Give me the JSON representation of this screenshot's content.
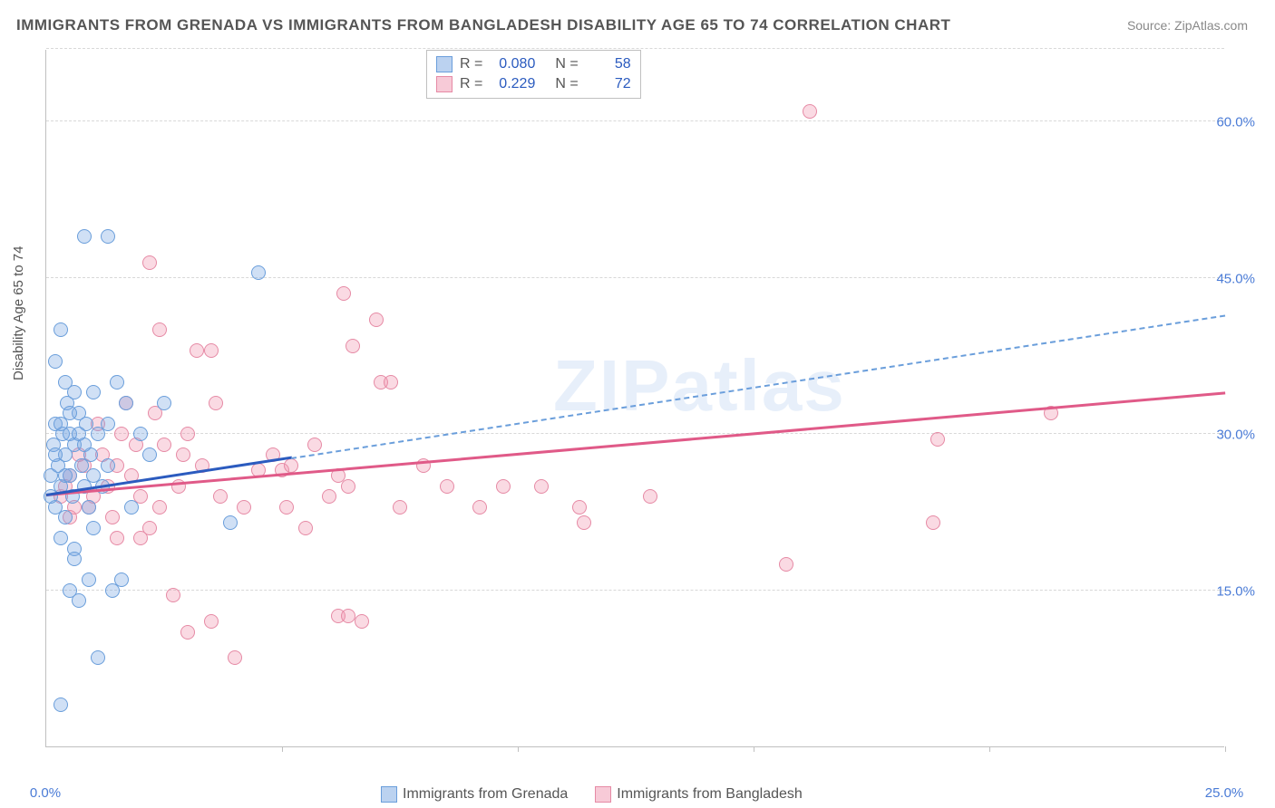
{
  "title": "IMMIGRANTS FROM GRENADA VS IMMIGRANTS FROM BANGLADESH DISABILITY AGE 65 TO 74 CORRELATION CHART",
  "source_prefix": "Source: ",
  "source_name": "ZipAtlas.com",
  "y_axis_label": "Disability Age 65 to 74",
  "watermark": "ZIPatlas",
  "chart": {
    "type": "scatter",
    "xlim": [
      0,
      25
    ],
    "ylim": [
      0,
      67
    ],
    "x_ticks": [
      0,
      5,
      10,
      15,
      20,
      25
    ],
    "x_tick_labels": [
      "0.0%",
      "",
      "",
      "",
      "",
      "25.0%"
    ],
    "y_ticks": [
      15,
      30,
      45,
      60
    ],
    "y_tick_labels": [
      "15.0%",
      "30.0%",
      "45.0%",
      "60.0%"
    ],
    "background_color": "#ffffff",
    "grid_color": "#d8d8d8",
    "axis_color": "#c0c0c0",
    "tick_label_color": "#4a7bd6",
    "series": {
      "grenada": {
        "label": "Immigrants from Grenada",
        "color_fill": "rgba(120,165,225,0.35)",
        "color_stroke": "#6a9edb",
        "marker_size": 16,
        "R": "0.080",
        "N": "58",
        "trend_solid": {
          "x0": 0,
          "y0": 24.0,
          "x1": 5.2,
          "y1": 27.6,
          "color": "#2b5bbf",
          "width": 3
        },
        "trend_dash": {
          "x0": 5.2,
          "y0": 27.6,
          "x1": 25,
          "y1": 41.3,
          "color": "#6a9edb",
          "width": 2
        },
        "points": [
          [
            0.1,
            26
          ],
          [
            0.15,
            29
          ],
          [
            0.2,
            23
          ],
          [
            0.2,
            31
          ],
          [
            0.25,
            27
          ],
          [
            0.3,
            25
          ],
          [
            0.3,
            20
          ],
          [
            0.35,
            30
          ],
          [
            0.4,
            28
          ],
          [
            0.4,
            22
          ],
          [
            0.45,
            33
          ],
          [
            0.5,
            26
          ],
          [
            0.5,
            30
          ],
          [
            0.55,
            24
          ],
          [
            0.6,
            29
          ],
          [
            0.6,
            19
          ],
          [
            0.7,
            32
          ],
          [
            0.75,
            27
          ],
          [
            0.8,
            25
          ],
          [
            0.85,
            31
          ],
          [
            0.9,
            23
          ],
          [
            0.95,
            28
          ],
          [
            1.0,
            34
          ],
          [
            1.0,
            26
          ],
          [
            1.1,
            30
          ],
          [
            1.2,
            25
          ],
          [
            1.3,
            31
          ],
          [
            0.8,
            49
          ],
          [
            1.3,
            49
          ],
          [
            0.3,
            40
          ],
          [
            4.5,
            45.5
          ],
          [
            1.5,
            35
          ],
          [
            1.7,
            33
          ],
          [
            2.0,
            30
          ],
          [
            2.2,
            28
          ],
          [
            2.5,
            33
          ],
          [
            3.9,
            21.5
          ],
          [
            1.8,
            23
          ],
          [
            0.6,
            18
          ],
          [
            0.9,
            16
          ],
          [
            0.5,
            15
          ],
          [
            1.4,
            15
          ],
          [
            1.6,
            16
          ],
          [
            0.7,
            14
          ],
          [
            1.1,
            8.5
          ],
          [
            0.3,
            4
          ],
          [
            1.0,
            21
          ],
          [
            1.3,
            27
          ],
          [
            0.4,
            35
          ],
          [
            0.2,
            37
          ],
          [
            0.6,
            34
          ],
          [
            0.7,
            30
          ],
          [
            0.5,
            32
          ],
          [
            0.8,
            29
          ],
          [
            0.2,
            28
          ],
          [
            0.3,
            31
          ],
          [
            0.4,
            26
          ],
          [
            0.1,
            24
          ]
        ]
      },
      "bangladesh": {
        "label": "Immigrants from Bangladesh",
        "color_fill": "rgba(240,150,175,0.35)",
        "color_stroke": "#e68aa5",
        "marker_size": 16,
        "R": "0.229",
        "N": "72",
        "trend_solid": {
          "x0": 0,
          "y0": 24.0,
          "x1": 25,
          "y1": 33.8,
          "color": "#e05a88",
          "width": 3
        },
        "points": [
          [
            0.3,
            24
          ],
          [
            0.5,
            26
          ],
          [
            0.6,
            23
          ],
          [
            0.8,
            27
          ],
          [
            1.0,
            24
          ],
          [
            1.2,
            28
          ],
          [
            1.4,
            22
          ],
          [
            1.6,
            30
          ],
          [
            1.8,
            26
          ],
          [
            2.0,
            24
          ],
          [
            2.3,
            32
          ],
          [
            2.5,
            29
          ],
          [
            2.8,
            25
          ],
          [
            3.0,
            30
          ],
          [
            3.3,
            27
          ],
          [
            3.6,
            33
          ],
          [
            2.2,
            46.5
          ],
          [
            2.4,
            40
          ],
          [
            3.2,
            38
          ],
          [
            3.5,
            38
          ],
          [
            6.3,
            43.5
          ],
          [
            6.5,
            38.5
          ],
          [
            7.1,
            35
          ],
          [
            7.3,
            35
          ],
          [
            7.5,
            23
          ],
          [
            8.5,
            25
          ],
          [
            9.2,
            23
          ],
          [
            10.5,
            25
          ],
          [
            11.3,
            23
          ],
          [
            11.4,
            21.5
          ],
          [
            12.8,
            24
          ],
          [
            4.5,
            26.5
          ],
          [
            5.0,
            26.5
          ],
          [
            5.2,
            27
          ],
          [
            5.1,
            23
          ],
          [
            6.2,
            26
          ],
          [
            6.4,
            25
          ],
          [
            5.5,
            21
          ],
          [
            2.2,
            21
          ],
          [
            2.4,
            23
          ],
          [
            2.0,
            20
          ],
          [
            1.5,
            20
          ],
          [
            2.7,
            14.5
          ],
          [
            3.0,
            11
          ],
          [
            3.5,
            12
          ],
          [
            6.2,
            12.5
          ],
          [
            6.4,
            12.5
          ],
          [
            6.7,
            12
          ],
          [
            4.0,
            8.5
          ],
          [
            16.2,
            61
          ],
          [
            21.3,
            32
          ],
          [
            18.9,
            29.5
          ],
          [
            15.7,
            17.5
          ],
          [
            18.8,
            21.5
          ],
          [
            7.0,
            41
          ],
          [
            1.7,
            33
          ],
          [
            1.9,
            29
          ],
          [
            1.3,
            25
          ],
          [
            0.9,
            23
          ],
          [
            0.7,
            28
          ],
          [
            0.4,
            25
          ],
          [
            1.1,
            31
          ],
          [
            1.5,
            27
          ],
          [
            2.9,
            28
          ],
          [
            3.7,
            24
          ],
          [
            4.2,
            23
          ],
          [
            4.8,
            28
          ],
          [
            5.7,
            29
          ],
          [
            6.0,
            24
          ],
          [
            8.0,
            27
          ],
          [
            9.7,
            25
          ],
          [
            0.5,
            22
          ]
        ]
      }
    }
  },
  "legend_top": {
    "r_label": "R =",
    "n_label": "N ="
  }
}
